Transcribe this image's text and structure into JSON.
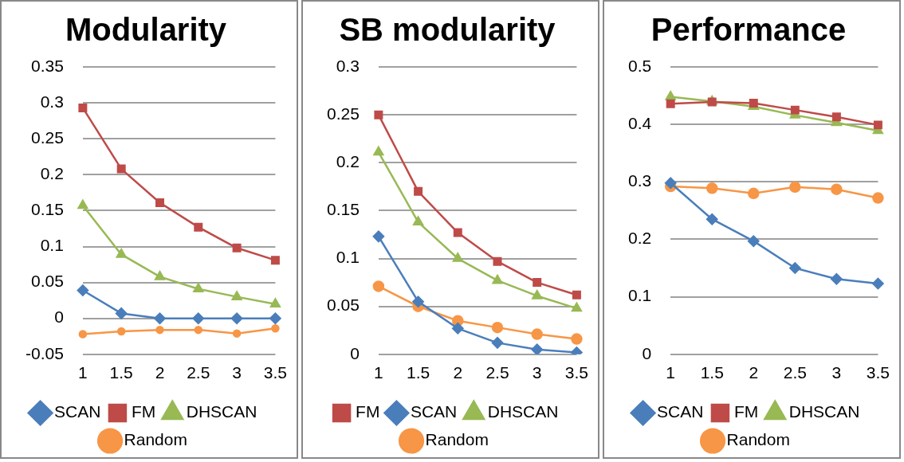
{
  "chart_data": [
    {
      "type": "line",
      "title": "Modularity",
      "categories": [
        "1",
        "1.5",
        "2",
        "2.5",
        "3",
        "3.5"
      ],
      "ylim": [
        -0.05,
        0.35
      ],
      "yticks": [
        -0.05,
        0,
        0.05,
        0.1,
        0.15,
        0.2,
        0.25,
        0.3,
        0.35
      ],
      "grid": "y",
      "legend": "bottom",
      "series": [
        {
          "name": "SCAN",
          "color": "#4a7ebb",
          "marker": "diamond",
          "values": [
            0.039,
            0.007,
            0,
            0,
            0,
            0
          ]
        },
        {
          "name": "FM",
          "color": "#be4b48",
          "marker": "square",
          "values": [
            0.293,
            0.208,
            0.161,
            0.127,
            0.098,
            0.081
          ]
        },
        {
          "name": "DHSCAN",
          "color": "#98b954",
          "marker": "triangle",
          "values": [
            0.157,
            0.089,
            0.058,
            0.041,
            0.03,
            0.02
          ]
        },
        {
          "name": "Random",
          "color": "#f79646",
          "marker": "circle",
          "values": [
            -0.022,
            -0.018,
            -0.016,
            -0.016,
            -0.021,
            -0.014
          ]
        }
      ]
    },
    {
      "type": "line",
      "title": "SB modularity",
      "categories": [
        "1",
        "1.5",
        "2",
        "2.5",
        "3",
        "3.5"
      ],
      "ylim": [
        0,
        0.3
      ],
      "yticks": [
        0,
        0.05,
        0.1,
        0.15,
        0.2,
        0.25,
        0.3
      ],
      "grid": "y",
      "legend": "bottom",
      "series": [
        {
          "name": "FM",
          "color": "#be4b48",
          "marker": "square",
          "values": [
            0.25,
            0.17,
            0.127,
            0.097,
            0.075,
            0.062
          ]
        },
        {
          "name": "SCAN",
          "color": "#4a7ebb",
          "marker": "diamond",
          "values": [
            0.123,
            0.055,
            0.027,
            0.012,
            0.005,
            0.002
          ]
        },
        {
          "name": "DHSCAN",
          "color": "#98b954",
          "marker": "triangle",
          "values": [
            0.211,
            0.138,
            0.1,
            0.077,
            0.061,
            0.048
          ]
        },
        {
          "name": "Random",
          "color": "#f79646",
          "marker": "circle",
          "values": [
            0.071,
            0.05,
            0.035,
            0.028,
            0.021,
            0.016
          ]
        }
      ]
    },
    {
      "type": "line",
      "title": "Performance",
      "categories": [
        "1",
        "1.5",
        "2",
        "2.5",
        "3",
        "3.5"
      ],
      "ylim": [
        0,
        0.5
      ],
      "yticks": [
        0,
        0.1,
        0.2,
        0.3,
        0.4,
        0.5
      ],
      "grid": "y",
      "legend": "bottom",
      "series": [
        {
          "name": "SCAN",
          "color": "#4a7ebb",
          "marker": "diamond",
          "values": [
            0.298,
            0.235,
            0.197,
            0.15,
            0.131,
            0.123
          ]
        },
        {
          "name": "FM",
          "color": "#be4b48",
          "marker": "square",
          "values": [
            0.436,
            0.439,
            0.437,
            0.425,
            0.413,
            0.399
          ]
        },
        {
          "name": "DHSCAN",
          "color": "#98b954",
          "marker": "triangle",
          "values": [
            0.448,
            0.44,
            0.431,
            0.416,
            0.403,
            0.389
          ]
        },
        {
          "name": "Random",
          "color": "#f79646",
          "marker": "circle",
          "values": [
            0.292,
            0.289,
            0.28,
            0.291,
            0.287,
            0.272
          ]
        }
      ]
    }
  ]
}
